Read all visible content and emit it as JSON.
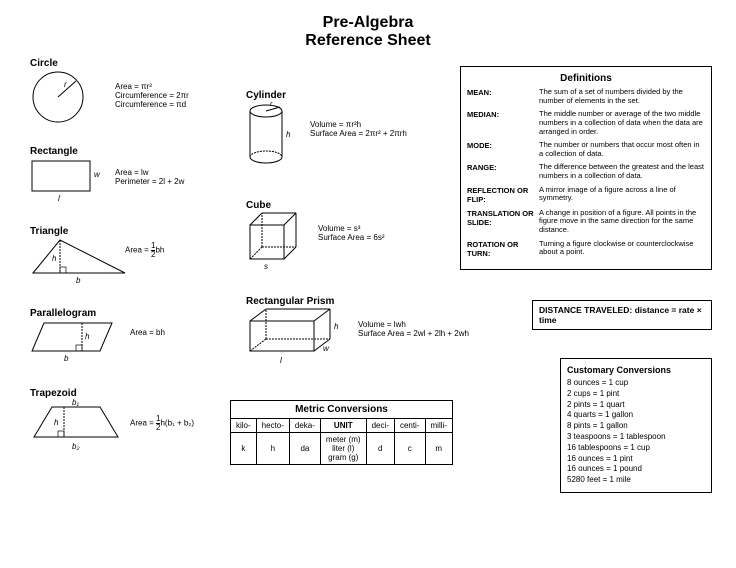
{
  "title_line1": "Pre-Algebra",
  "title_line2": "Reference Sheet",
  "circle": {
    "name": "Circle",
    "area": "Area = πr²",
    "circ1": "Circumference = 2πr",
    "circ2": "Circumference = πd",
    "r": "r"
  },
  "rectangle": {
    "name": "Rectangle",
    "area": "Area = lw",
    "peri": "Perimeter = 2l + 2w",
    "l": "l",
    "w": "w"
  },
  "triangle": {
    "name": "Triangle",
    "fmla_pre": "Area = ",
    "frac_n": "1",
    "frac_d": "2",
    "fmla_post": "bh",
    "b": "b",
    "h": "h"
  },
  "para": {
    "name": "Parallelogram",
    "area": "Area = bh",
    "b": "b",
    "h": "h"
  },
  "trap": {
    "name": "Trapezoid",
    "fmla_pre": "Area = ",
    "frac_n": "1",
    "frac_d": "2",
    "fmla_post": "h(b₁ + b₂)",
    "b1": "b₁",
    "b2": "b₂",
    "h": "h"
  },
  "cylinder": {
    "name": "Cylinder",
    "vol": "Volume = πr²h",
    "sa": "Surface Area = 2πr² + 2πrh",
    "h": "h",
    "r": "r"
  },
  "cube": {
    "name": "Cube",
    "vol": "Volume = s³",
    "sa": "Surface Area = 6s²",
    "s": "s"
  },
  "prism": {
    "name": "Rectangular Prism",
    "vol": "Volume = lwh",
    "sa": "Surface Area = 2wl + 2lh + 2wh",
    "l": "l",
    "w": "w",
    "h": "h"
  },
  "defs": {
    "title": "Definitions",
    "rows": [
      {
        "t": "MEAN:",
        "d": "The sum of a set of numbers divided by the number of elements in the set."
      },
      {
        "t": "MEDIAN:",
        "d": "The middle number or average of the two middle numbers in a collection of data when the data are arranged in order."
      },
      {
        "t": "MODE:",
        "d": "The number or numbers that occur most often in a collection of data."
      },
      {
        "t": "RANGE:",
        "d": "The difference between the greatest and the least numbers in a collection of data."
      },
      {
        "t": "REFLECTION OR FLIP:",
        "d": "A mirror image of a figure across a line of symmetry."
      },
      {
        "t": "TRANSLATION OR SLIDE:",
        "d": "A change in position of a figure. All points in the figure move in the same direction for the same distance."
      },
      {
        "t": "ROTATION OR TURN:",
        "d": "Turning a figure clockwise or counterclockwise about a point."
      }
    ]
  },
  "distance": {
    "label": "DISTANCE TRAVELED:",
    "fmla": "distance = rate × time"
  },
  "metric": {
    "title": "Metric Conversions",
    "h": [
      "kilo-",
      "hecto-",
      "deka-",
      "UNIT",
      "deci-",
      "centi-",
      "milli-"
    ],
    "r": [
      "k",
      "h",
      "da",
      "meter (m)\nliter (l)\ngram (g)",
      "d",
      "c",
      "m"
    ]
  },
  "cust": {
    "title": "Customary Conversions",
    "items": [
      "8 ounces = 1 cup",
      "2 cups = 1 pint",
      "2 pints = 1 quart",
      "4 quarts = 1 gallon",
      "8 pints = 1 gallon",
      "3 teaspoons = 1 tablespoon",
      "16 tablespoons = 1 cup",
      "16 ounces = 1 pint",
      "16 ounces = 1 pound",
      "5280 feet = 1 mile"
    ]
  }
}
